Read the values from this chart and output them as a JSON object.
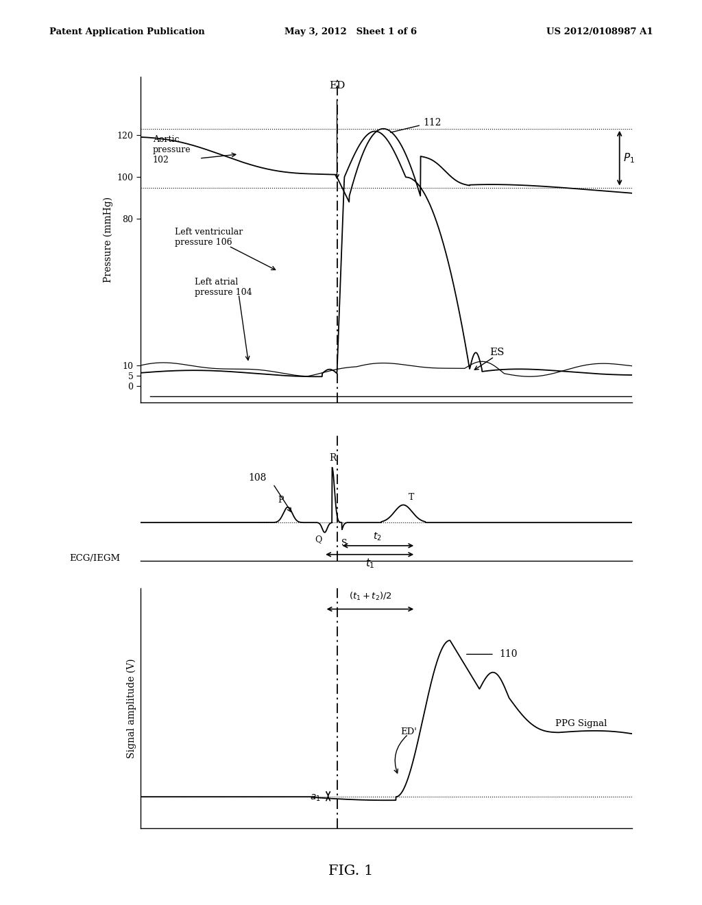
{
  "bg_color": "#ffffff",
  "header_left": "Patent Application Publication",
  "header_center": "May 3, 2012   Sheet 1 of 6",
  "header_right": "US 2012/0108987 A1",
  "footer": "FIG. 1",
  "t_ED": 0.4,
  "t_ES": 0.67,
  "t_P": 0.3,
  "t_Q": 0.375,
  "t_R": 0.39,
  "t_S": 0.405,
  "t_T": 0.535,
  "t_EDp": 0.52,
  "t_ppg_peak": 0.63,
  "panel1": {
    "ylabel": "Pressure (mmHg)",
    "yticks": [
      0,
      5,
      10,
      80,
      100,
      120
    ],
    "yticklabels": [
      "0",
      "5",
      "10",
      "80",
      "100",
      "120"
    ]
  },
  "panel2": {
    "ylabel": "ECG/IEGM"
  },
  "panel3": {
    "ylabel": "Signal amplitude (V)"
  }
}
